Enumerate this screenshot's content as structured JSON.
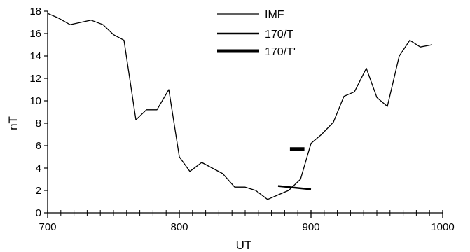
{
  "chart_data": {
    "type": "line",
    "xlabel": "UT",
    "ylabel": "nT",
    "xlim": [
      700,
      1000
    ],
    "ylim": [
      0,
      18
    ],
    "x_ticks": [
      700,
      800,
      900,
      1000
    ],
    "x_tick_labels": [
      "700",
      "800",
      "900",
      "1000"
    ],
    "x_minor_step": 10,
    "y_ticks": [
      0,
      2,
      4,
      6,
      8,
      10,
      12,
      14,
      16,
      18
    ],
    "y_tick_labels": [
      "0",
      "2",
      "4",
      "6",
      "8",
      "10",
      "12",
      "14",
      "16",
      "18"
    ],
    "grid": false,
    "legend_position": "top-center",
    "series": [
      {
        "name": "IMF",
        "style": "thin",
        "color": "#000000",
        "x": [
          700,
          708,
          717,
          725,
          733,
          742,
          750,
          758,
          767,
          775,
          783,
          792,
          800,
          808,
          817,
          825,
          833,
          842,
          850,
          858,
          867,
          875,
          883,
          892,
          900,
          908,
          917,
          925,
          933,
          942,
          950,
          958,
          967,
          975,
          983,
          992
        ],
        "y": [
          17.8,
          17.4,
          16.8,
          17.0,
          17.2,
          16.8,
          15.9,
          15.4,
          8.3,
          9.2,
          9.2,
          11.0,
          5.0,
          3.7,
          4.5,
          4.0,
          3.5,
          2.3,
          2.3,
          2.0,
          1.2,
          1.6,
          2.0,
          3.0,
          6.2,
          7.0,
          8.1,
          10.4,
          10.8,
          12.9,
          10.3,
          9.5,
          14.0,
          15.4,
          14.8,
          15.0
        ]
      },
      {
        "name": "170/T",
        "style": "medium",
        "color": "#000000",
        "x": [
          875,
          900
        ],
        "y": [
          2.4,
          2.1
        ]
      },
      {
        "name": "170/T'",
        "style": "thick",
        "color": "#000000",
        "x": [
          884,
          895
        ],
        "y": [
          5.7,
          5.7
        ]
      }
    ]
  }
}
